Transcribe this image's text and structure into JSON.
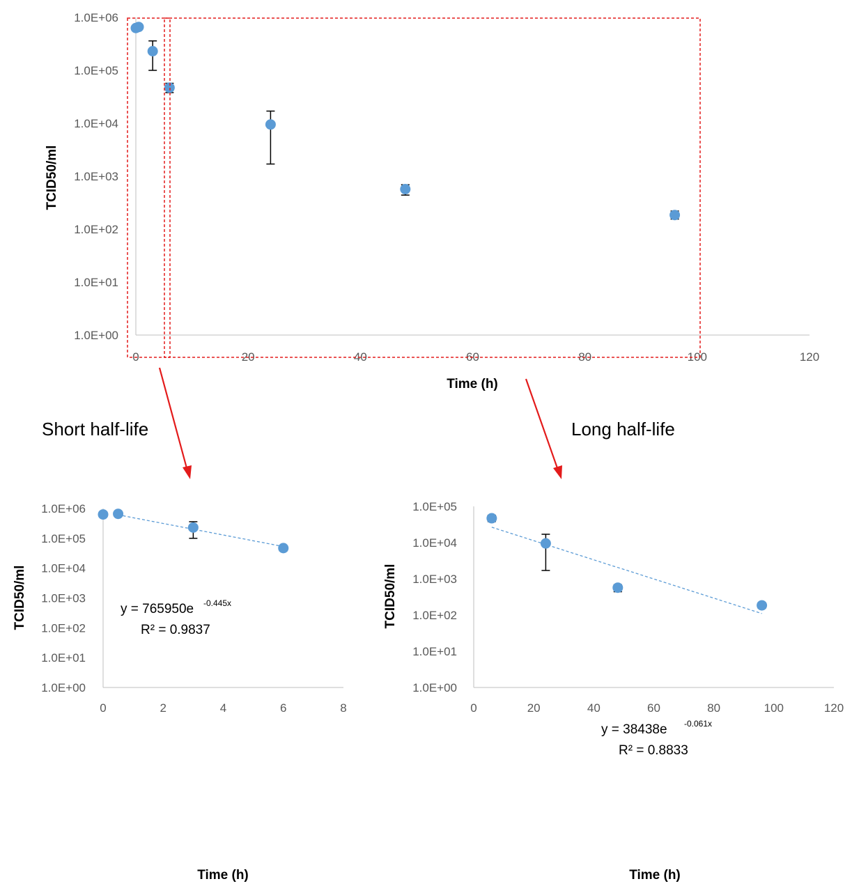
{
  "labels": {
    "short": "Short half-life",
    "long": "Long half-life"
  },
  "colors": {
    "point": "#5b9bd5",
    "errorbar": "#000000",
    "trendline": "#5b9bd5",
    "highlight_box": "#e31b1b",
    "arrow": "#e31b1b",
    "axis": "#bfbfbf"
  },
  "chart_data": [
    {
      "id": "top",
      "type": "scatter",
      "xlabel": "Time (h)",
      "ylabel": "TCID50/ml",
      "xlim": [
        0,
        120
      ],
      "xticks": [
        "0",
        "20",
        "40",
        "60",
        "80",
        "100",
        "120"
      ],
      "yscale": "log",
      "ylim": [
        1,
        1000000
      ],
      "yticks": [
        "1.0E+00",
        "1.0E+01",
        "1.0E+02",
        "1.0E+03",
        "1.0E+04",
        "1.0E+05",
        "1.0E+06"
      ],
      "grid": false,
      "points": [
        {
          "x": 0,
          "y": 630000,
          "err": null
        },
        {
          "x": 0.5,
          "y": 660000,
          "err": null
        },
        {
          "x": 3,
          "y": 230000,
          "err": [
            100000,
            360000
          ]
        },
        {
          "x": 6,
          "y": 47000,
          "err": [
            38000,
            57000
          ]
        },
        {
          "x": 24,
          "y": 9500,
          "err": [
            1700,
            17000
          ]
        },
        {
          "x": 48,
          "y": 570,
          "err": [
            440,
            690
          ]
        },
        {
          "x": 96,
          "y": 185,
          "err": [
            155,
            220
          ]
        }
      ]
    },
    {
      "id": "short",
      "type": "scatter",
      "xlabel": "Time (h)",
      "ylabel": "TCID50/ml",
      "xlim": [
        0,
        8
      ],
      "xticks": [
        "0",
        "2",
        "4",
        "6",
        "8"
      ],
      "yscale": "log",
      "ylim": [
        1,
        1000000
      ],
      "yticks": [
        "1.0E+00",
        "1.0E+01",
        "1.0E+02",
        "1.0E+03",
        "1.0E+04",
        "1.0E+05",
        "1.0E+06"
      ],
      "grid": false,
      "points": [
        {
          "x": 0,
          "y": 630000,
          "err": null
        },
        {
          "x": 0.5,
          "y": 660000,
          "err": null
        },
        {
          "x": 3,
          "y": 230000,
          "err": [
            100000,
            360000
          ]
        },
        {
          "x": 6,
          "y": 47000,
          "err": [
            38000,
            57000
          ]
        }
      ],
      "trendline": {
        "a": 765950,
        "b": -0.445,
        "x_from": 0.5,
        "x_to": 6
      },
      "equation": {
        "prefix": "y = 765950e",
        "exponent": "-0.445x"
      },
      "r2": "R² = 0.9837"
    },
    {
      "id": "long",
      "type": "scatter",
      "xlabel": "Time (h)",
      "ylabel": "TCID50/ml",
      "xlim": [
        0,
        120
      ],
      "xticks": [
        "0",
        "20",
        "40",
        "60",
        "80",
        "100",
        "120"
      ],
      "yscale": "log",
      "ylim": [
        1,
        100000
      ],
      "yticks": [
        "1.0E+00",
        "1.0E+01",
        "1.0E+02",
        "1.0E+03",
        "1.0E+04",
        "1.0E+05"
      ],
      "grid": false,
      "points": [
        {
          "x": 6,
          "y": 47000,
          "err": [
            38000,
            57000
          ]
        },
        {
          "x": 24,
          "y": 9500,
          "err": [
            1700,
            17000
          ]
        },
        {
          "x": 48,
          "y": 570,
          "err": [
            440,
            690
          ]
        },
        {
          "x": 96,
          "y": 185,
          "err": [
            155,
            220
          ]
        }
      ],
      "trendline": {
        "a": 38438,
        "b": -0.061,
        "x_from": 6,
        "x_to": 96
      },
      "equation": {
        "prefix": "y = 38438e",
        "exponent": "-0.061x"
      },
      "r2": "R² = 0.8833"
    }
  ]
}
